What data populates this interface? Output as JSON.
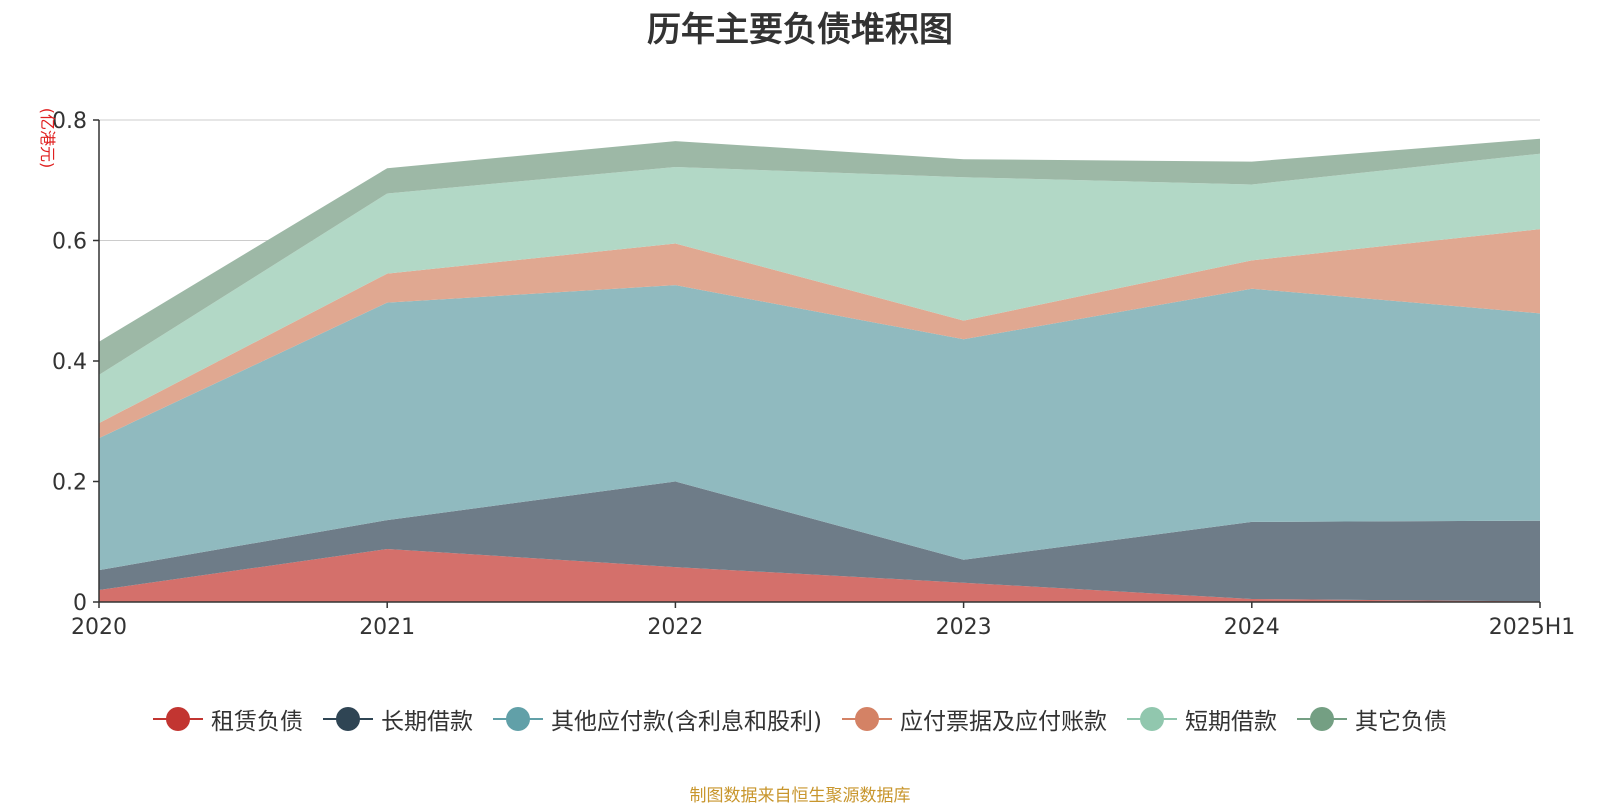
{
  "title": "历年主要负债堆积图",
  "footer": "制图数据来自恒生聚源数据库",
  "chart_data": {
    "type": "area",
    "stacked": true,
    "title": "历年主要负债堆积图",
    "ylabel": "(亿港元)",
    "xlabel": "",
    "categories": [
      "2020",
      "2021",
      "2022",
      "2023",
      "2024",
      "2025H1"
    ],
    "ylim": [
      0,
      0.8
    ],
    "yticks": [
      0,
      0.2,
      0.4,
      0.6,
      0.8
    ],
    "ytick_labels": [
      "0",
      "0.2",
      "0.4",
      "0.6",
      "0.8"
    ],
    "grid": true,
    "legend_position": "bottom",
    "series": [
      {
        "name": "租赁负债",
        "color": "#c23531",
        "fill": "#d4706b",
        "values": [
          0.02,
          0.088,
          0.058,
          0.032,
          0.005,
          0.001
        ]
      },
      {
        "name": "长期借款",
        "color": "#2f4554",
        "fill": "#6e7c88",
        "values": [
          0.033,
          0.048,
          0.142,
          0.038,
          0.128,
          0.134
        ]
      },
      {
        "name": "其他应付款(含利息和股利)",
        "color": "#61a0a8",
        "fill": "#90babf",
        "values": [
          0.219,
          0.361,
          0.326,
          0.366,
          0.387,
          0.344
        ]
      },
      {
        "name": "应付票据及应付账款",
        "color": "#d48265",
        "fill": "#e0a891",
        "values": [
          0.025,
          0.048,
          0.069,
          0.031,
          0.047,
          0.14
        ]
      },
      {
        "name": "短期借款",
        "color": "#91c7ae",
        "fill": "#b2d8c6",
        "values": [
          0.08,
          0.133,
          0.127,
          0.238,
          0.126,
          0.125
        ]
      },
      {
        "name": "其它负债",
        "color": "#749f83",
        "fill": "#9db8a6",
        "values": [
          0.055,
          0.042,
          0.043,
          0.03,
          0.038,
          0.025
        ]
      }
    ]
  }
}
